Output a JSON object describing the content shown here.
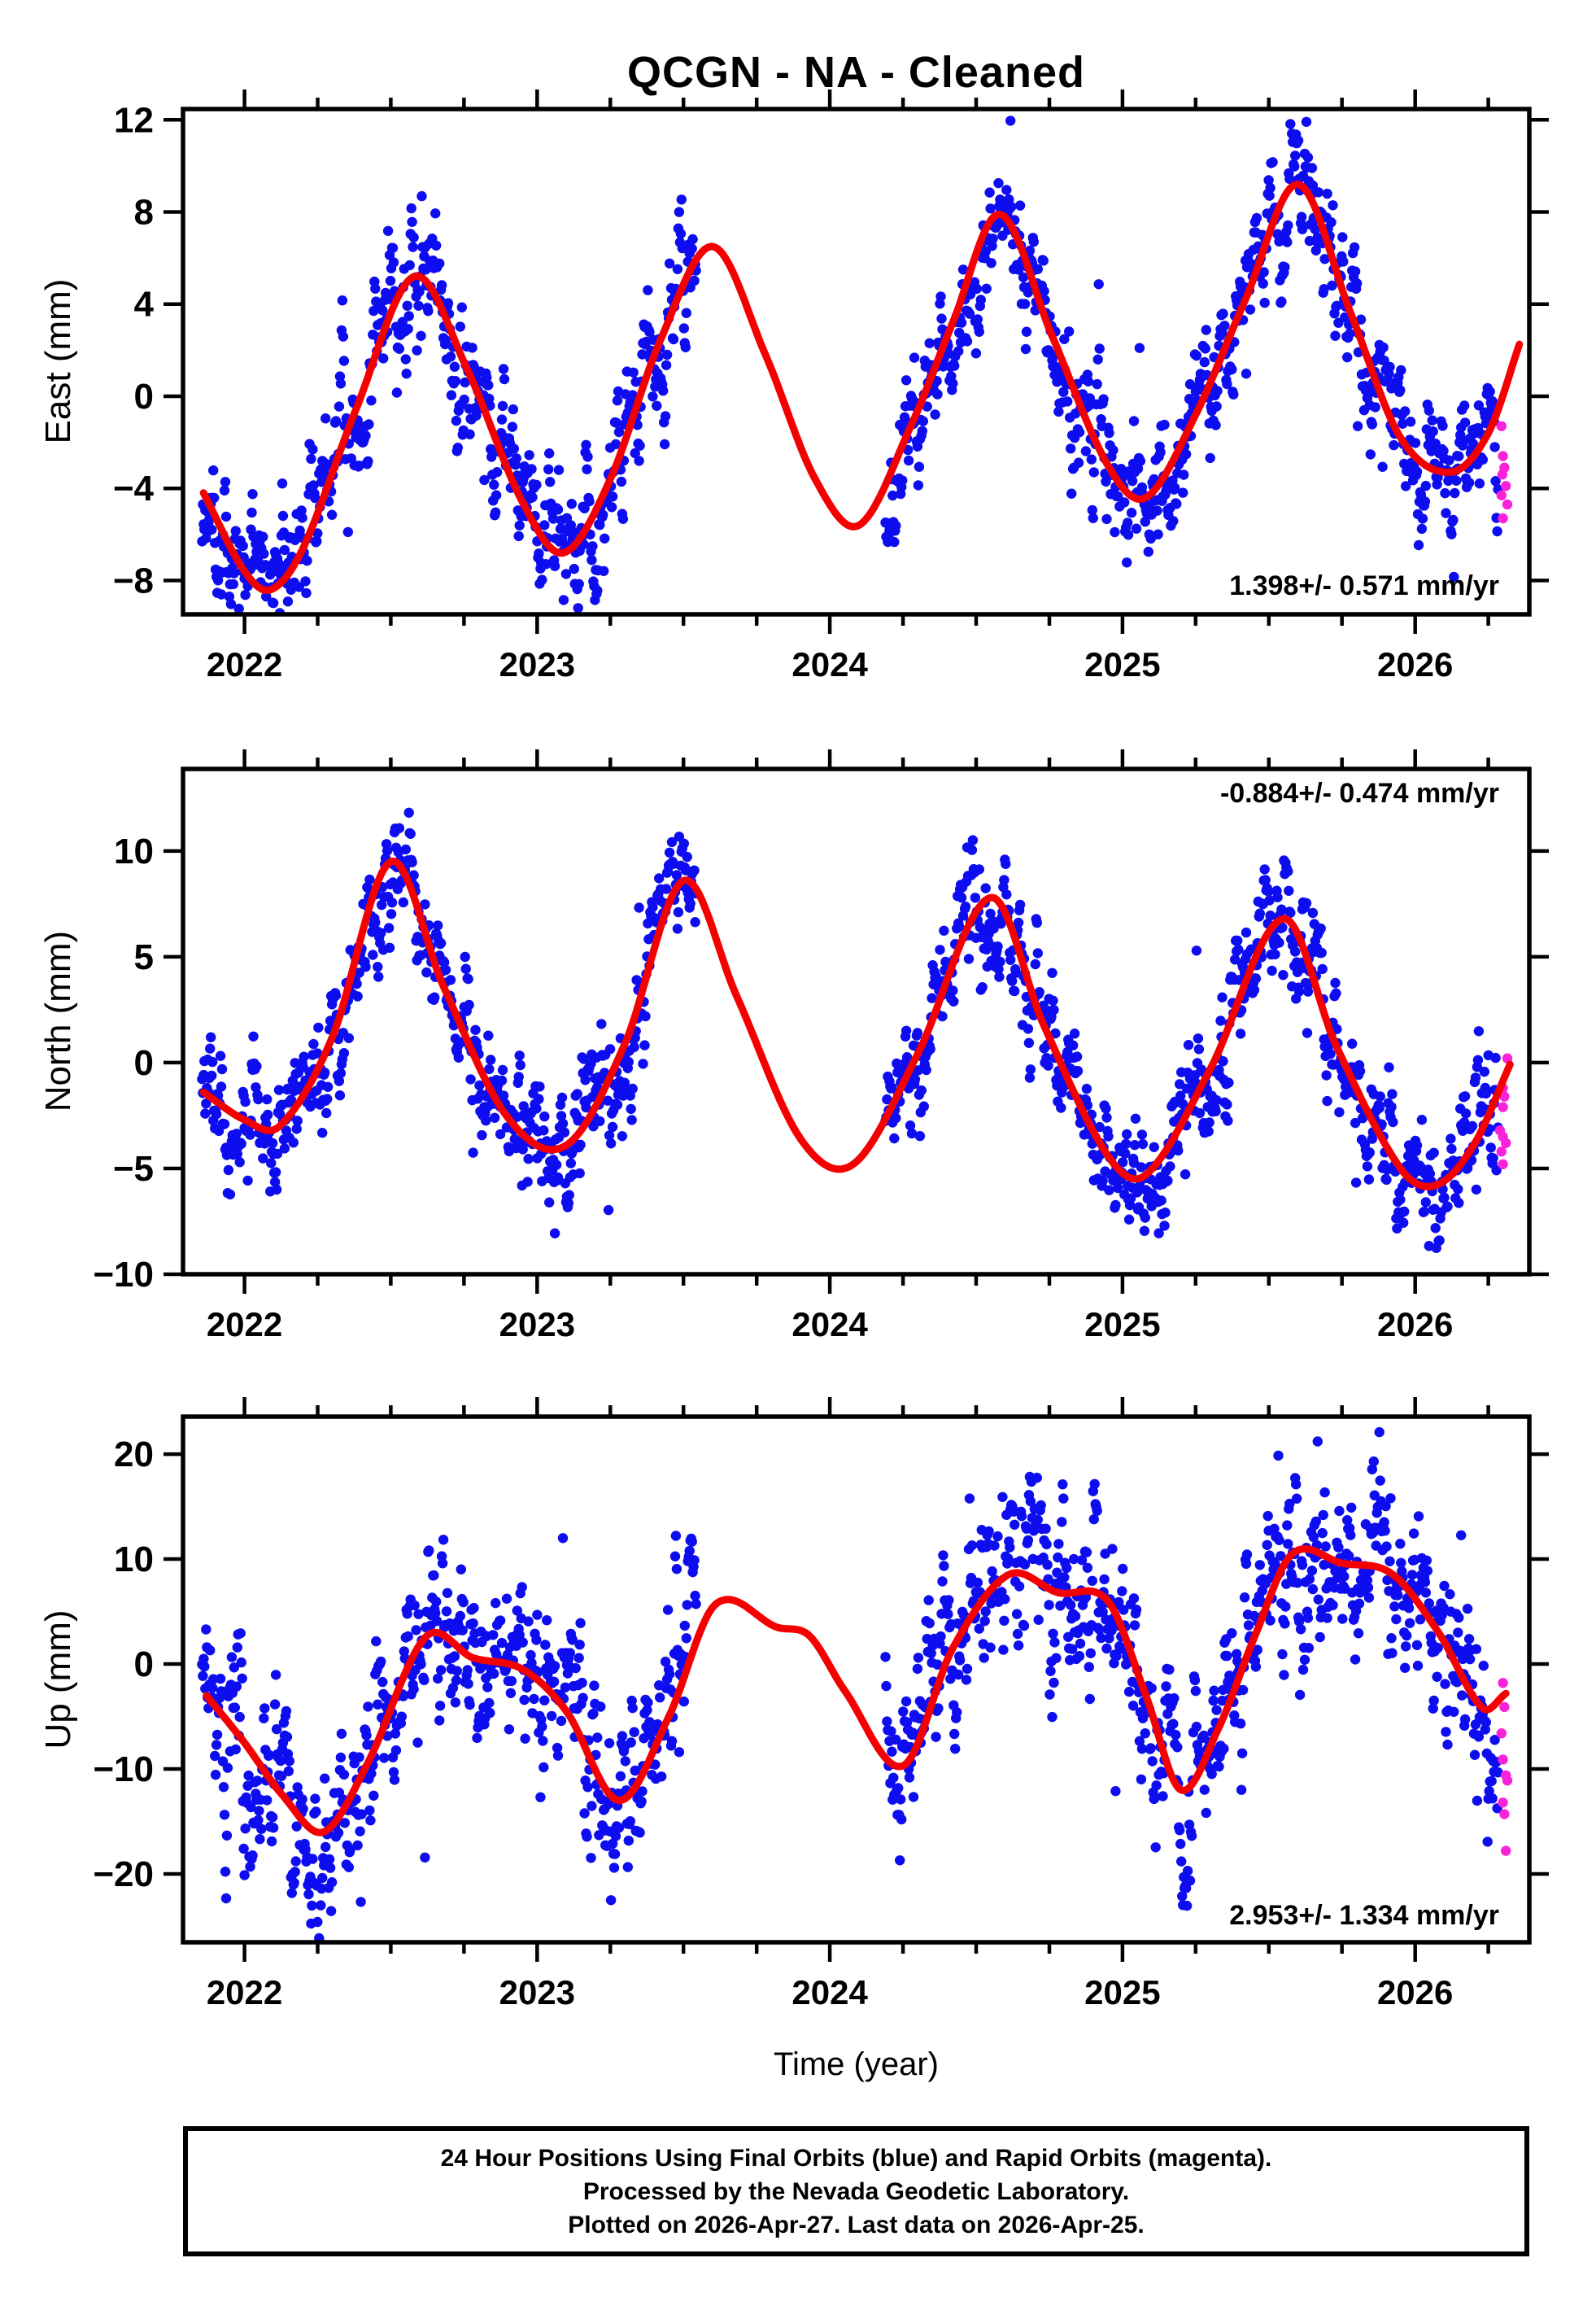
{
  "title": "QCGN  - NA - Cleaned",
  "xlabel": "Time (year)",
  "caption": {
    "line1": "24 Hour Positions Using Final Orbits (blue) and Rapid Orbits (magenta).",
    "line2": "Processed by the Nevada Geodetic Laboratory.",
    "line3": "Plotted on 2026-Apr-27. Last data on 2026-Apr-25."
  },
  "legend": {
    "final_orbits": "blue",
    "rapid_orbits": "magenta"
  },
  "colors": {
    "final_orbit_blue": "#0d0df0",
    "rapid_orbit_magenta": "#fa22d8",
    "model_curve_red": "#f50000",
    "axis_black": "#000000",
    "background": "#ffffff"
  },
  "chart_data": [
    {
      "type": "scatter",
      "component": "East",
      "ylabel": "East (mm)",
      "trend_label": "1.398+/- 0.571 mm/yr",
      "trend_label_position": "bottom-right",
      "xlim": [
        2021.79,
        2026.39
      ],
      "xticks": [
        2022,
        2023,
        2024,
        2025,
        2026
      ],
      "x_minor_step": 0.25,
      "ylim": [
        -9.47,
        12.47
      ],
      "yticks": [
        -8,
        -4,
        0,
        4,
        8,
        12
      ],
      "data_gap": [
        2023.545,
        2024.19
      ],
      "blue_segments": [
        [
          2021.855,
          2023.545
        ],
        [
          2024.19,
          2026.285
        ]
      ],
      "scatter_noise_mm": 1.5,
      "noise_rho": 0.72,
      "outlier_rate": 0.02,
      "seed": 11,
      "model_curve": [
        [
          2021.86,
          -4.2
        ],
        [
          2022.0,
          -7.6
        ],
        [
          2022.09,
          -8.4
        ],
        [
          2022.2,
          -6.6
        ],
        [
          2022.38,
          -0.6
        ],
        [
          2022.58,
          5.2
        ],
        [
          2022.76,
          1.2
        ],
        [
          2022.95,
          -4.6
        ],
        [
          2023.09,
          -6.8
        ],
        [
          2023.25,
          -3.6
        ],
        [
          2023.42,
          2.4
        ],
        [
          2023.6,
          6.5
        ],
        [
          2023.78,
          1.8
        ],
        [
          2023.95,
          -3.6
        ],
        [
          2024.1,
          -5.6
        ],
        [
          2024.28,
          -1.2
        ],
        [
          2024.42,
          3.2
        ],
        [
          2024.58,
          7.9
        ],
        [
          2024.76,
          2.6
        ],
        [
          2024.95,
          -3.0
        ],
        [
          2025.08,
          -4.4
        ],
        [
          2025.25,
          -0.8
        ],
        [
          2025.42,
          4.2
        ],
        [
          2025.6,
          9.2
        ],
        [
          2025.78,
          3.6
        ],
        [
          2025.95,
          -1.8
        ],
        [
          2026.12,
          -3.3
        ],
        [
          2026.25,
          -1.6
        ],
        [
          2026.36,
          2.4
        ]
      ],
      "magenta_points": [
        [
          2026.295,
          -1.3
        ],
        [
          2026.3,
          -2.6
        ],
        [
          2026.305,
          -3.1
        ],
        [
          2026.298,
          -3.4
        ],
        [
          2026.31,
          -3.9
        ],
        [
          2026.295,
          -4.3
        ],
        [
          2026.315,
          -4.7
        ],
        [
          2026.3,
          -5.3
        ]
      ]
    },
    {
      "type": "scatter",
      "component": "North",
      "ylabel": "North (mm)",
      "trend_label": "-0.884+/- 0.474 mm/yr",
      "trend_label_position": "top-right",
      "xlim": [
        2021.79,
        2026.39
      ],
      "xticks": [
        2022,
        2023,
        2024,
        2025,
        2026
      ],
      "x_minor_step": 0.25,
      "ylim": [
        -10.0,
        13.88
      ],
      "yticks": [
        -10,
        -5,
        0,
        5,
        10
      ],
      "data_gap": [
        2023.545,
        2024.19
      ],
      "blue_segments": [
        [
          2021.855,
          2023.545
        ],
        [
          2024.19,
          2026.285
        ]
      ],
      "scatter_noise_mm": 1.6,
      "noise_rho": 0.72,
      "outlier_rate": 0.02,
      "seed": 22,
      "model_curve": [
        [
          2021.86,
          -1.4
        ],
        [
          2022.0,
          -2.7
        ],
        [
          2022.12,
          -3.0
        ],
        [
          2022.3,
          1.2
        ],
        [
          2022.5,
          9.5
        ],
        [
          2022.68,
          3.6
        ],
        [
          2022.9,
          -2.6
        ],
        [
          2023.1,
          -3.9
        ],
        [
          2023.3,
          0.9
        ],
        [
          2023.5,
          8.6
        ],
        [
          2023.68,
          3.2
        ],
        [
          2023.9,
          -3.6
        ],
        [
          2024.08,
          -4.8
        ],
        [
          2024.3,
          0.4
        ],
        [
          2024.55,
          7.8
        ],
        [
          2024.73,
          1.8
        ],
        [
          2024.95,
          -4.4
        ],
        [
          2025.08,
          -5.3
        ],
        [
          2025.3,
          -0.3
        ],
        [
          2025.55,
          6.8
        ],
        [
          2025.73,
          0.8
        ],
        [
          2025.95,
          -5.0
        ],
        [
          2026.07,
          -5.8
        ],
        [
          2026.2,
          -3.9
        ],
        [
          2026.33,
          0.1
        ]
      ],
      "magenta_points": [
        [
          2026.315,
          0.2
        ],
        [
          2026.3,
          -1.2
        ],
        [
          2026.305,
          -1.6
        ],
        [
          2026.3,
          -2.1
        ],
        [
          2026.29,
          -3.2
        ],
        [
          2026.3,
          -3.5
        ],
        [
          2026.31,
          -3.8
        ],
        [
          2026.295,
          -4.2
        ],
        [
          2026.3,
          -4.8
        ]
      ]
    },
    {
      "type": "scatter",
      "component": "Up",
      "ylabel": "Up (mm)",
      "trend_label": "2.953+/- 1.334 mm/yr",
      "trend_label_position": "bottom-right",
      "xlim": [
        2021.79,
        2026.39
      ],
      "xticks": [
        2022,
        2023,
        2024,
        2025,
        2026
      ],
      "x_minor_step": 0.25,
      "ylim": [
        -26.51,
        23.57
      ],
      "yticks": [
        -20,
        -10,
        0,
        10,
        20
      ],
      "data_gap": [
        2023.545,
        2024.19
      ],
      "blue_segments": [
        [
          2021.855,
          2023.545
        ],
        [
          2024.19,
          2026.285
        ]
      ],
      "scatter_noise_mm": 4.6,
      "noise_rho": 0.7,
      "outlier_rate": 0.02,
      "seed": 33,
      "model_curve": [
        [
          2021.87,
          -3.0
        ],
        [
          2022.0,
          -7.5
        ],
        [
          2022.13,
          -12.5
        ],
        [
          2022.27,
          -16.0
        ],
        [
          2022.42,
          -9.5
        ],
        [
          2022.62,
          2.6
        ],
        [
          2022.78,
          0.6
        ],
        [
          2022.95,
          -0.5
        ],
        [
          2023.1,
          -4.5
        ],
        [
          2023.28,
          -13.0
        ],
        [
          2023.45,
          -5.0
        ],
        [
          2023.61,
          5.7
        ],
        [
          2023.82,
          3.5
        ],
        [
          2023.93,
          2.7
        ],
        [
          2024.05,
          -2.5
        ],
        [
          2024.25,
          -9.7
        ],
        [
          2024.42,
          1.5
        ],
        [
          2024.61,
          8.5
        ],
        [
          2024.78,
          6.8
        ],
        [
          2024.95,
          6.0
        ],
        [
          2025.08,
          -3.0
        ],
        [
          2025.2,
          -12.0
        ],
        [
          2025.33,
          -6.0
        ],
        [
          2025.45,
          2.5
        ],
        [
          2025.58,
          10.5
        ],
        [
          2025.75,
          9.6
        ],
        [
          2025.92,
          8.6
        ],
        [
          2026.08,
          3.0
        ],
        [
          2026.23,
          -4.2
        ],
        [
          2026.31,
          -2.8
        ]
      ],
      "magenta_points": [
        [
          2026.3,
          -1.8
        ],
        [
          2026.305,
          -4.1
        ],
        [
          2026.295,
          -6.6
        ],
        [
          2026.3,
          -9.1
        ],
        [
          2026.31,
          -10.6
        ],
        [
          2026.315,
          -11.1
        ],
        [
          2026.3,
          -13.2
        ],
        [
          2026.305,
          -14.3
        ],
        [
          2026.31,
          -17.8
        ]
      ]
    }
  ]
}
